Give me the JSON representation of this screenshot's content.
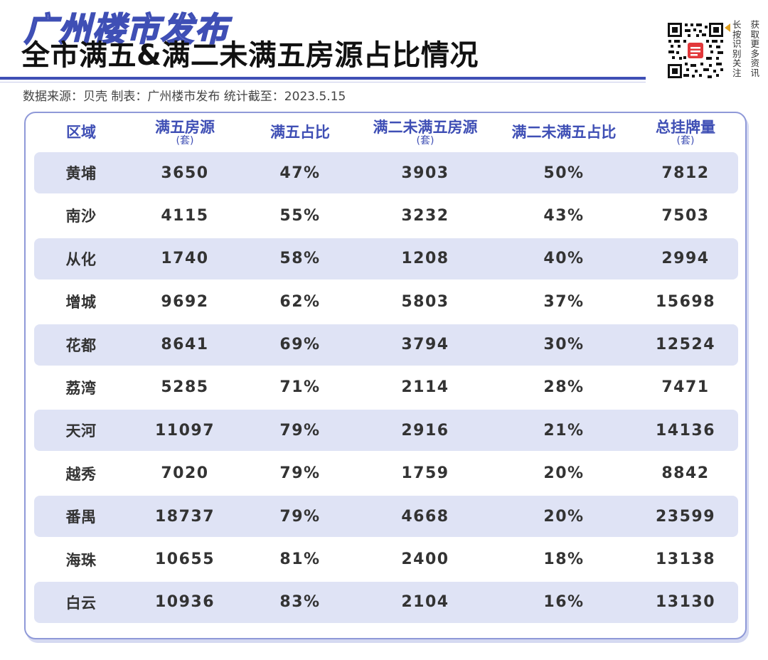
{
  "header": {
    "brand": "广州楼市发布",
    "title": "全市满五&满二未满五房源占比情况",
    "source": "数据来源：贝壳 制表：广州楼市发布 统计截至：2023.5.15",
    "qr_side_text": [
      "长按",
      "获取",
      "识别",
      "更多",
      "关注",
      "资讯"
    ]
  },
  "colors": {
    "accent": "#3f4fb5",
    "row_shade": "#dfe3f5",
    "card_border": "#8f99d8"
  },
  "table": {
    "columns": [
      {
        "label": "区域",
        "unit": ""
      },
      {
        "label": "满五房源",
        "unit": "(套)"
      },
      {
        "label": "满五占比",
        "unit": ""
      },
      {
        "label": "满二未满五房源",
        "unit": "(套)"
      },
      {
        "label": "满二未满五占比",
        "unit": ""
      },
      {
        "label": "总挂牌量",
        "unit": "(套)"
      }
    ],
    "rows": [
      [
        "黄埔",
        "3650",
        "47%",
        "3903",
        "50%",
        "7812"
      ],
      [
        "南沙",
        "4115",
        "55%",
        "3232",
        "43%",
        "7503"
      ],
      [
        "从化",
        "1740",
        "58%",
        "1208",
        "40%",
        "2994"
      ],
      [
        "增城",
        "9692",
        "62%",
        "5803",
        "37%",
        "15698"
      ],
      [
        "花都",
        "8641",
        "69%",
        "3794",
        "30%",
        "12524"
      ],
      [
        "荔湾",
        "5285",
        "71%",
        "2114",
        "28%",
        "7471"
      ],
      [
        "天河",
        "11097",
        "79%",
        "2916",
        "21%",
        "14136"
      ],
      [
        "越秀",
        "7020",
        "79%",
        "1759",
        "20%",
        "8842"
      ],
      [
        "番禺",
        "18737",
        "79%",
        "4668",
        "20%",
        "23599"
      ],
      [
        "海珠",
        "10655",
        "81%",
        "2400",
        "18%",
        "13138"
      ],
      [
        "白云",
        "10936",
        "83%",
        "2104",
        "16%",
        "13130"
      ]
    ]
  }
}
